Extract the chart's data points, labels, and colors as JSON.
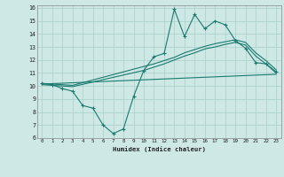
{
  "xlabel": "Humidex (Indice chaleur)",
  "xlim": [
    -0.5,
    23.5
  ],
  "ylim": [
    6,
    16.2
  ],
  "yticks": [
    6,
    7,
    8,
    9,
    10,
    11,
    12,
    13,
    14,
    15,
    16
  ],
  "xticks": [
    0,
    1,
    2,
    3,
    4,
    5,
    6,
    7,
    8,
    9,
    10,
    11,
    12,
    13,
    14,
    15,
    16,
    17,
    18,
    19,
    20,
    21,
    22,
    23
  ],
  "bg_color": "#cde8e5",
  "grid_color": "#aacfcc",
  "line_color": "#1a7a6e",
  "line1_x": [
    0,
    1,
    2,
    3,
    4,
    5,
    6,
    7,
    8,
    9,
    10,
    11,
    12,
    13,
    14,
    15,
    16,
    17,
    18,
    19,
    20,
    21,
    22,
    23
  ],
  "line1_y": [
    10.2,
    10.1,
    9.8,
    9.6,
    8.5,
    8.3,
    7.0,
    6.35,
    6.7,
    9.2,
    11.2,
    12.25,
    12.5,
    15.9,
    13.8,
    15.5,
    14.4,
    15.0,
    14.7,
    13.5,
    12.9,
    11.8,
    11.7,
    11.1
  ],
  "line2_x": [
    0,
    23
  ],
  "line2_y": [
    10.15,
    10.9
  ],
  "line3_x": [
    0,
    1,
    2,
    3,
    10,
    11,
    12,
    13,
    14,
    15,
    16,
    17,
    18,
    19,
    20,
    21,
    22,
    23
  ],
  "line3_y": [
    10.2,
    10.15,
    10.1,
    10.05,
    11.5,
    11.7,
    11.95,
    12.2,
    12.55,
    12.8,
    13.05,
    13.25,
    13.4,
    13.55,
    13.35,
    12.55,
    11.95,
    11.25
  ],
  "line4_x": [
    0,
    1,
    2,
    3,
    10,
    11,
    12,
    13,
    14,
    15,
    16,
    17,
    18,
    19,
    20,
    21,
    22,
    23
  ],
  "line4_y": [
    10.1,
    10.05,
    10.0,
    9.95,
    11.2,
    11.45,
    11.7,
    12.0,
    12.3,
    12.55,
    12.85,
    13.0,
    13.2,
    13.35,
    13.15,
    12.3,
    11.7,
    11.0
  ]
}
